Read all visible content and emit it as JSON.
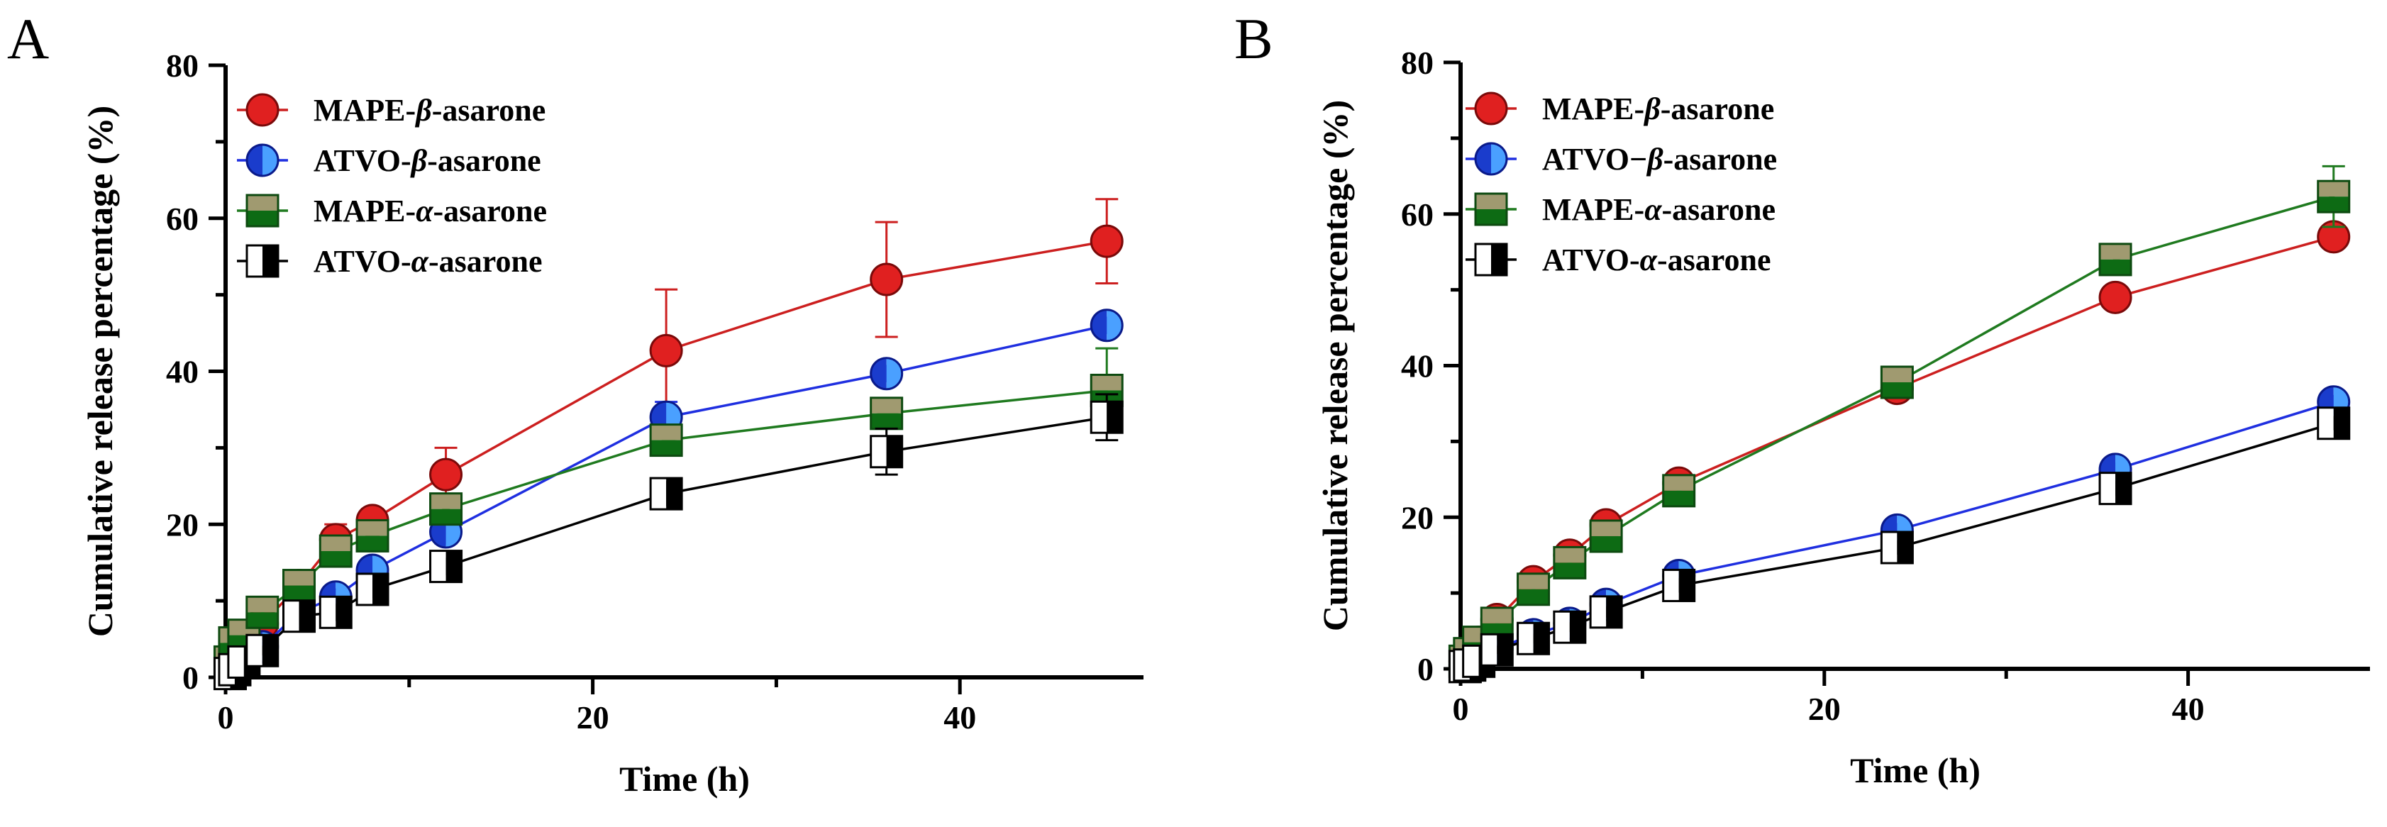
{
  "chart_data": [
    {
      "type": "line",
      "panel_label": "A",
      "xlabel": "Time (h)",
      "ylabel": "Cumulative release percentage (%)",
      "xlim": [
        0,
        50
      ],
      "ylim": [
        0,
        80
      ],
      "xticks": [
        0,
        20,
        40
      ],
      "yticks": [
        0,
        20,
        40,
        60,
        80
      ],
      "legend_position": "top-left",
      "x": [
        0.25,
        0.5,
        1,
        2,
        4,
        6,
        8,
        12,
        24,
        36,
        48
      ],
      "series": [
        {
          "name": "MAPE-β-asarone",
          "prefix": "MAPE-",
          "greek": "β",
          "suffix": "-asarone",
          "marker": "circle",
          "line_color": "#cc1f1f",
          "fill": "#e02020",
          "fill2": "#e02020",
          "values": [
            1.0,
            2.5,
            4.5,
            7.0,
            12.0,
            18.0,
            20.5,
            26.5,
            42.7,
            52.0,
            57.0
          ],
          "errors": [
            0.5,
            0.8,
            1.0,
            1.0,
            1.0,
            2.0,
            1.5,
            3.5,
            8.0,
            7.5,
            5.5
          ]
        },
        {
          "name": "ATVO-β-asarone",
          "prefix": "ATVO-",
          "greek": "β",
          "suffix": "-asarone",
          "marker": "circle-half",
          "line_color": "#1f2fe0",
          "fill": "#1a3ccc",
          "fill2": "#4aa0ff",
          "values": [
            0.5,
            1.0,
            2.5,
            4.0,
            8.5,
            10.5,
            14.0,
            19.0,
            34.0,
            39.7,
            46.0
          ],
          "errors": [
            0.3,
            0.5,
            0.5,
            0.5,
            1.0,
            1.0,
            1.5,
            1.5,
            2.0,
            1.0,
            1.0
          ]
        },
        {
          "name": "MAPE-α-asarone",
          "prefix": "MAPE-",
          "greek": "α",
          "suffix": "-asarone",
          "marker": "square-half",
          "line_color": "#1f7a1f",
          "fill": "#a09a70",
          "fill2": "#0d6b14",
          "values": [
            2.0,
            4.5,
            5.5,
            8.5,
            12.0,
            16.5,
            18.5,
            22.0,
            31.0,
            34.5,
            37.5
          ],
          "errors": [
            0.5,
            1.0,
            1.0,
            1.0,
            1.0,
            2.0,
            1.5,
            1.5,
            2.0,
            2.0,
            5.5
          ]
        },
        {
          "name": "ATVO-α-asarone",
          "prefix": "ATVO-",
          "greek": "α",
          "suffix": "-asarone",
          "marker": "square-lr",
          "line_color": "#000000",
          "fill": "#ffffff",
          "fill2": "#000000",
          "values": [
            0.5,
            1.0,
            2.0,
            3.5,
            8.0,
            8.5,
            11.5,
            14.5,
            24.0,
            29.5,
            34.0
          ],
          "errors": [
            0.3,
            0.5,
            0.5,
            0.5,
            1.0,
            1.0,
            1.0,
            1.0,
            1.5,
            3.0,
            3.0
          ]
        }
      ]
    },
    {
      "type": "line",
      "panel_label": "B",
      "xlabel": "Time (h)",
      "ylabel": "Cumulative release percentage (%)",
      "xlim": [
        0,
        50
      ],
      "ylim": [
        0,
        80
      ],
      "xticks": [
        0,
        20,
        40
      ],
      "yticks": [
        0,
        20,
        40,
        60,
        80
      ],
      "legend_position": "top-left",
      "x": [
        0.25,
        0.5,
        1,
        2,
        4,
        6,
        8,
        12,
        24,
        36,
        48
      ],
      "series": [
        {
          "name": "MAPE-β-asarone",
          "prefix": "MAPE-",
          "greek": "β",
          "suffix": "-asarone",
          "marker": "circle",
          "line_color": "#cc1f1f",
          "fill": "#e02020",
          "fill2": "#e02020",
          "values": [
            1.0,
            2.0,
            3.5,
            6.5,
            11.5,
            15.0,
            19.0,
            24.5,
            37.0,
            49.0,
            57.0
          ],
          "errors": [
            0.3,
            0.5,
            0.5,
            0.8,
            1.0,
            1.0,
            1.0,
            1.0,
            1.0,
            1.0,
            1.0
          ]
        },
        {
          "name": "ATVO−β-asarone",
          "prefix": "ATVO−",
          "greek": "β",
          "suffix": "-asarone",
          "marker": "circle-half",
          "line_color": "#1f2fe0",
          "fill": "#1a3ccc",
          "fill2": "#4aa0ff",
          "values": [
            0.5,
            0.8,
            1.5,
            2.7,
            4.5,
            6.0,
            8.5,
            12.3,
            18.3,
            26.3,
            35.2
          ],
          "errors": [
            0.2,
            0.3,
            0.3,
            0.4,
            0.5,
            0.5,
            0.6,
            0.8,
            0.8,
            0.8,
            0.8
          ]
        },
        {
          "name": "MAPE-α-asarone",
          "prefix": "MAPE-",
          "greek": "α",
          "suffix": "-asarone",
          "marker": "square-half",
          "line_color": "#1f7a1f",
          "fill": "#a09a70",
          "fill2": "#0d6b14",
          "values": [
            1.0,
            2.0,
            3.5,
            6.0,
            10.5,
            14.0,
            17.5,
            23.5,
            37.8,
            54.0,
            62.3
          ],
          "errors": [
            0.3,
            0.5,
            0.5,
            0.8,
            1.0,
            1.0,
            1.0,
            1.0,
            1.0,
            1.0,
            4.0
          ]
        },
        {
          "name": "ATVO-α-asarone",
          "prefix": "ATVO-",
          "greek": "α",
          "suffix": "-asarone",
          "marker": "square-lr",
          "line_color": "#000000",
          "fill": "#ffffff",
          "fill2": "#000000",
          "values": [
            0.3,
            0.5,
            1.0,
            2.5,
            4.0,
            5.5,
            7.5,
            11.0,
            16.0,
            23.8,
            32.4
          ],
          "errors": [
            0.2,
            0.3,
            0.3,
            0.4,
            0.5,
            0.5,
            0.6,
            0.8,
            0.8,
            0.8,
            0.8
          ]
        }
      ]
    }
  ]
}
